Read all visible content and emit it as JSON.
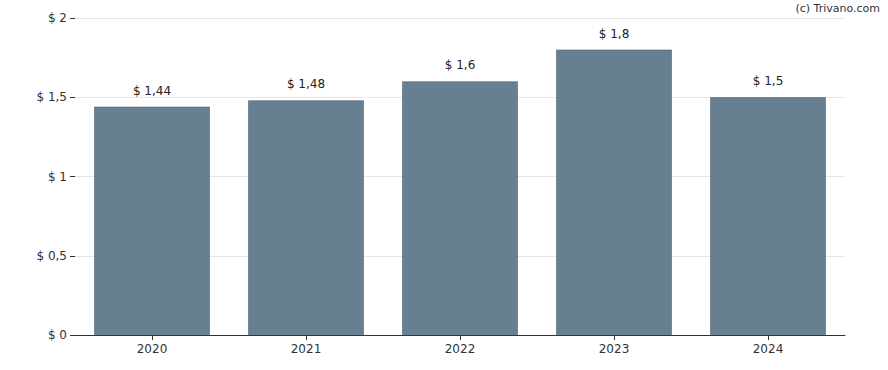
{
  "chart_data": {
    "type": "bar",
    "annotations": [
      "(c) Trivano.com"
    ],
    "categories": [
      "2020",
      "2021",
      "2022",
      "2023",
      "2024"
    ],
    "values": [
      1.44,
      1.48,
      1.6,
      1.8,
      1.5
    ],
    "value_labels": [
      "$ 1,44",
      "$ 1,48",
      "$ 1,6",
      "$ 1,8",
      "$ 1,5"
    ],
    "data_labels": true,
    "color": "#667f91",
    "ylim": [
      0,
      2
    ],
    "yticks": [
      {
        "value": 0,
        "label": "$ 0"
      },
      {
        "value": 0.5,
        "label": "$ 0,5"
      },
      {
        "value": 1,
        "label": "$ 1"
      },
      {
        "value": 1.5,
        "label": "$ 1,5"
      },
      {
        "value": 2,
        "label": "$ 2"
      }
    ],
    "grid": true
  }
}
